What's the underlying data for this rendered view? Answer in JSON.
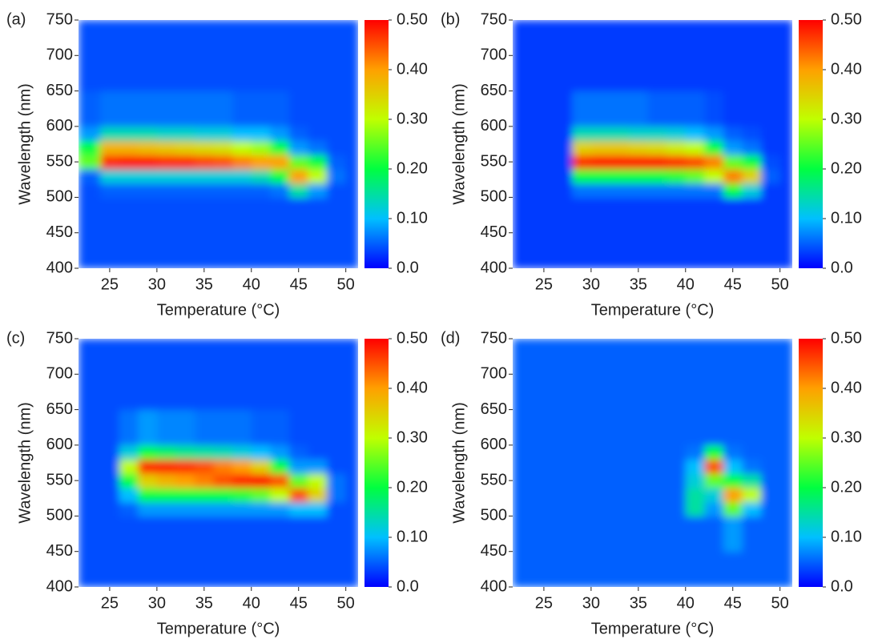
{
  "chart_data": [
    {
      "type": "heatmap",
      "panel_label": "(a)",
      "xlabel": "Temperature (°C)",
      "ylabel": "Wavelength (nm)",
      "xlim": [
        21.7,
        51.3
      ],
      "xticks": [
        25,
        30,
        35,
        40,
        45,
        50
      ],
      "ylim": [
        400,
        750
      ],
      "yticks": [
        400,
        450,
        500,
        550,
        600,
        650,
        700,
        750
      ],
      "xbins": [
        21.7,
        24,
        26,
        28,
        30,
        32,
        34,
        36,
        38,
        40,
        42,
        44,
        46,
        48,
        50,
        51.3
      ],
      "ybins": [
        400,
        450,
        500,
        520,
        540,
        560,
        580,
        600,
        650,
        700,
        750
      ],
      "z": [
        [
          0.04,
          0.04,
          0.04,
          0.04,
          0.04,
          0.04,
          0.04,
          0.04,
          0.04,
          0.04,
          0.04,
          0.04,
          0.04,
          0.04,
          0.04
        ],
        [
          0.04,
          0.04,
          0.04,
          0.04,
          0.04,
          0.04,
          0.04,
          0.04,
          0.04,
          0.04,
          0.04,
          0.04,
          0.04,
          0.04,
          0.04
        ],
        [
          0.04,
          0.05,
          0.05,
          0.05,
          0.05,
          0.05,
          0.05,
          0.05,
          0.05,
          0.05,
          0.06,
          0.15,
          0.08,
          0.04,
          0.04
        ],
        [
          0.05,
          0.12,
          0.12,
          0.12,
          0.12,
          0.12,
          0.12,
          0.12,
          0.12,
          0.14,
          0.2,
          0.4,
          0.3,
          0.06,
          0.04
        ],
        [
          0.25,
          0.48,
          0.5,
          0.5,
          0.48,
          0.48,
          0.46,
          0.45,
          0.42,
          0.4,
          0.4,
          0.25,
          0.2,
          0.05,
          0.04
        ],
        [
          0.2,
          0.38,
          0.38,
          0.37,
          0.36,
          0.35,
          0.34,
          0.33,
          0.3,
          0.28,
          0.2,
          0.08,
          0.06,
          0.04,
          0.04
        ],
        [
          0.08,
          0.14,
          0.14,
          0.14,
          0.13,
          0.13,
          0.12,
          0.12,
          0.1,
          0.1,
          0.08,
          0.05,
          0.04,
          0.04,
          0.04
        ],
        [
          0.05,
          0.06,
          0.06,
          0.06,
          0.06,
          0.06,
          0.06,
          0.06,
          0.05,
          0.05,
          0.05,
          0.04,
          0.04,
          0.04,
          0.04
        ],
        [
          0.04,
          0.04,
          0.04,
          0.04,
          0.04,
          0.04,
          0.04,
          0.04,
          0.04,
          0.04,
          0.04,
          0.04,
          0.04,
          0.04,
          0.04
        ],
        [
          0.04,
          0.04,
          0.04,
          0.04,
          0.04,
          0.04,
          0.04,
          0.04,
          0.04,
          0.04,
          0.04,
          0.04,
          0.04,
          0.04,
          0.04
        ]
      ],
      "zlim": [
        0,
        0.5
      ],
      "zticks": [
        {
          "value": 0,
          "label": "0.0"
        },
        {
          "value": 0.1,
          "label": "0.10"
        },
        {
          "value": 0.2,
          "label": "0.20"
        },
        {
          "value": 0.3,
          "label": "0.30"
        },
        {
          "value": 0.4,
          "label": "0.40"
        },
        {
          "value": 0.5,
          "label": "0.50"
        }
      ],
      "colorscale": [
        "#0000ff",
        "#00c0ff",
        "#00ff40",
        "#c0ff00",
        "#ffa000",
        "#ff0000"
      ]
    },
    {
      "type": "heatmap",
      "panel_label": "(b)",
      "xlabel": "Temperature (°C)",
      "ylabel": "Wavelength (nm)",
      "xlim": [
        21.7,
        51.3
      ],
      "xticks": [
        25,
        30,
        35,
        40,
        45,
        50
      ],
      "ylim": [
        400,
        750
      ],
      "yticks": [
        400,
        450,
        500,
        550,
        600,
        650,
        700,
        750
      ],
      "xbins": [
        21.7,
        24,
        26,
        28,
        30,
        32,
        34,
        36,
        38,
        40,
        42,
        44,
        46,
        48,
        50,
        51.3
      ],
      "ybins": [
        400,
        450,
        500,
        520,
        540,
        560,
        580,
        600,
        650,
        700,
        750
      ],
      "z": [
        [
          0.03,
          0.03,
          0.03,
          0.03,
          0.03,
          0.03,
          0.03,
          0.03,
          0.03,
          0.03,
          0.03,
          0.03,
          0.03,
          0.03,
          0.03
        ],
        [
          0.03,
          0.03,
          0.03,
          0.03,
          0.03,
          0.03,
          0.03,
          0.03,
          0.03,
          0.03,
          0.03,
          0.03,
          0.03,
          0.03,
          0.03
        ],
        [
          0.03,
          0.03,
          0.03,
          0.06,
          0.06,
          0.06,
          0.06,
          0.06,
          0.06,
          0.06,
          0.06,
          0.2,
          0.12,
          0.03,
          0.03
        ],
        [
          0.03,
          0.03,
          0.03,
          0.2,
          0.2,
          0.2,
          0.2,
          0.2,
          0.22,
          0.25,
          0.3,
          0.42,
          0.35,
          0.05,
          0.03
        ],
        [
          0.03,
          0.03,
          0.03,
          0.48,
          0.5,
          0.5,
          0.5,
          0.5,
          0.48,
          0.46,
          0.42,
          0.25,
          0.2,
          0.04,
          0.03
        ],
        [
          0.03,
          0.03,
          0.03,
          0.35,
          0.36,
          0.36,
          0.35,
          0.34,
          0.32,
          0.3,
          0.2,
          0.08,
          0.06,
          0.03,
          0.03
        ],
        [
          0.03,
          0.03,
          0.03,
          0.14,
          0.14,
          0.14,
          0.13,
          0.13,
          0.12,
          0.1,
          0.08,
          0.05,
          0.04,
          0.03,
          0.03
        ],
        [
          0.03,
          0.03,
          0.03,
          0.06,
          0.06,
          0.06,
          0.06,
          0.05,
          0.05,
          0.05,
          0.04,
          0.03,
          0.03,
          0.03,
          0.03
        ],
        [
          0.03,
          0.03,
          0.03,
          0.03,
          0.03,
          0.03,
          0.03,
          0.03,
          0.03,
          0.03,
          0.03,
          0.03,
          0.03,
          0.03,
          0.03
        ],
        [
          0.03,
          0.03,
          0.03,
          0.03,
          0.03,
          0.03,
          0.03,
          0.03,
          0.03,
          0.03,
          0.03,
          0.03,
          0.03,
          0.03,
          0.03
        ]
      ],
      "zlim": [
        0,
        0.5
      ],
      "zticks": [
        {
          "value": 0,
          "label": "0.0"
        },
        {
          "value": 0.1,
          "label": "0.10"
        },
        {
          "value": 0.2,
          "label": "0.20"
        },
        {
          "value": 0.3,
          "label": "0.30"
        },
        {
          "value": 0.4,
          "label": "0.40"
        },
        {
          "value": 0.5,
          "label": "0.50"
        }
      ],
      "colorscale": [
        "#0000ff",
        "#00c0ff",
        "#00ff40",
        "#c0ff00",
        "#ffa000",
        "#ff0000"
      ]
    },
    {
      "type": "heatmap",
      "panel_label": "(c)",
      "xlabel": "Temperature (°C)",
      "ylabel": "Wavelength (nm)",
      "xlim": [
        21.7,
        51.3
      ],
      "xticks": [
        25,
        30,
        35,
        40,
        45,
        50
      ],
      "ylim": [
        400,
        750
      ],
      "yticks": [
        400,
        450,
        500,
        550,
        600,
        650,
        700,
        750
      ],
      "xbins": [
        21.7,
        24,
        26,
        28,
        30,
        32,
        34,
        36,
        38,
        40,
        42,
        44,
        46,
        48,
        50,
        51.3
      ],
      "ybins": [
        400,
        450,
        500,
        520,
        540,
        560,
        580,
        600,
        650,
        700,
        750
      ],
      "z": [
        [
          0.04,
          0.04,
          0.04,
          0.04,
          0.04,
          0.04,
          0.04,
          0.04,
          0.04,
          0.04,
          0.04,
          0.04,
          0.04,
          0.04,
          0.04
        ],
        [
          0.04,
          0.04,
          0.04,
          0.04,
          0.04,
          0.04,
          0.04,
          0.04,
          0.04,
          0.04,
          0.04,
          0.04,
          0.04,
          0.04,
          0.04
        ],
        [
          0.04,
          0.04,
          0.05,
          0.08,
          0.08,
          0.08,
          0.08,
          0.08,
          0.08,
          0.08,
          0.08,
          0.1,
          0.1,
          0.04,
          0.04
        ],
        [
          0.04,
          0.04,
          0.1,
          0.2,
          0.2,
          0.2,
          0.2,
          0.2,
          0.22,
          0.25,
          0.3,
          0.45,
          0.35,
          0.06,
          0.04
        ],
        [
          0.04,
          0.04,
          0.2,
          0.35,
          0.38,
          0.4,
          0.42,
          0.45,
          0.48,
          0.5,
          0.45,
          0.25,
          0.3,
          0.06,
          0.04
        ],
        [
          0.04,
          0.04,
          0.3,
          0.48,
          0.48,
          0.47,
          0.45,
          0.42,
          0.4,
          0.35,
          0.2,
          0.08,
          0.08,
          0.04,
          0.04
        ],
        [
          0.04,
          0.04,
          0.12,
          0.2,
          0.18,
          0.16,
          0.15,
          0.14,
          0.12,
          0.1,
          0.08,
          0.05,
          0.04,
          0.04,
          0.04
        ],
        [
          0.04,
          0.04,
          0.06,
          0.08,
          0.07,
          0.07,
          0.06,
          0.06,
          0.06,
          0.05,
          0.05,
          0.04,
          0.04,
          0.04,
          0.04
        ],
        [
          0.04,
          0.04,
          0.04,
          0.04,
          0.04,
          0.04,
          0.04,
          0.04,
          0.04,
          0.04,
          0.04,
          0.04,
          0.04,
          0.04,
          0.04
        ],
        [
          0.04,
          0.04,
          0.04,
          0.04,
          0.04,
          0.04,
          0.04,
          0.04,
          0.04,
          0.04,
          0.04,
          0.04,
          0.04,
          0.04,
          0.04
        ]
      ],
      "zlim": [
        0,
        0.5
      ],
      "zticks": [
        {
          "value": 0,
          "label": "0.0"
        },
        {
          "value": 0.1,
          "label": "0.10"
        },
        {
          "value": 0.2,
          "label": "0.20"
        },
        {
          "value": 0.3,
          "label": "0.30"
        },
        {
          "value": 0.4,
          "label": "0.40"
        },
        {
          "value": 0.5,
          "label": "0.50"
        }
      ],
      "colorscale": [
        "#0000ff",
        "#00c0ff",
        "#00ff40",
        "#c0ff00",
        "#ffa000",
        "#ff0000"
      ]
    },
    {
      "type": "heatmap",
      "panel_label": "(d)",
      "xlabel": "Temperature (°C)",
      "ylabel": "Wavelength (nm)",
      "xlim": [
        21.7,
        51.3
      ],
      "xticks": [
        25,
        30,
        35,
        40,
        45,
        50
      ],
      "ylim": [
        400,
        750
      ],
      "yticks": [
        400,
        450,
        500,
        550,
        600,
        650,
        700,
        750
      ],
      "xbins": [
        21.7,
        24,
        26,
        28,
        30,
        32,
        34,
        36,
        38,
        40,
        42,
        44,
        46,
        48,
        50,
        51.3
      ],
      "ybins": [
        400,
        450,
        500,
        520,
        540,
        560,
        580,
        600,
        650,
        700,
        750
      ],
      "z": [
        [
          0.05,
          0.05,
          0.05,
          0.05,
          0.05,
          0.05,
          0.05,
          0.05,
          0.05,
          0.05,
          0.05,
          0.05,
          0.05,
          0.05,
          0.05
        ],
        [
          0.05,
          0.05,
          0.05,
          0.05,
          0.05,
          0.05,
          0.05,
          0.05,
          0.05,
          0.05,
          0.05,
          0.08,
          0.05,
          0.05,
          0.05
        ],
        [
          0.05,
          0.05,
          0.05,
          0.05,
          0.05,
          0.05,
          0.05,
          0.05,
          0.05,
          0.15,
          0.08,
          0.25,
          0.1,
          0.05,
          0.05
        ],
        [
          0.05,
          0.05,
          0.05,
          0.05,
          0.05,
          0.05,
          0.05,
          0.05,
          0.05,
          0.15,
          0.12,
          0.4,
          0.3,
          0.05,
          0.05
        ],
        [
          0.05,
          0.05,
          0.05,
          0.05,
          0.05,
          0.05,
          0.05,
          0.05,
          0.05,
          0.12,
          0.25,
          0.2,
          0.15,
          0.05,
          0.05
        ],
        [
          0.05,
          0.05,
          0.05,
          0.05,
          0.05,
          0.05,
          0.05,
          0.05,
          0.05,
          0.1,
          0.45,
          0.1,
          0.06,
          0.05,
          0.05
        ],
        [
          0.05,
          0.05,
          0.05,
          0.05,
          0.05,
          0.05,
          0.05,
          0.05,
          0.05,
          0.06,
          0.2,
          0.06,
          0.05,
          0.05,
          0.05
        ],
        [
          0.05,
          0.05,
          0.05,
          0.05,
          0.05,
          0.05,
          0.05,
          0.05,
          0.05,
          0.05,
          0.05,
          0.05,
          0.05,
          0.05,
          0.05
        ],
        [
          0.05,
          0.05,
          0.05,
          0.05,
          0.05,
          0.05,
          0.05,
          0.05,
          0.05,
          0.05,
          0.05,
          0.05,
          0.05,
          0.05,
          0.05
        ],
        [
          0.05,
          0.05,
          0.05,
          0.05,
          0.05,
          0.05,
          0.05,
          0.05,
          0.05,
          0.05,
          0.05,
          0.05,
          0.05,
          0.05,
          0.05
        ]
      ],
      "zlim": [
        0,
        0.5
      ],
      "zticks": [
        {
          "value": 0,
          "label": "0.0"
        },
        {
          "value": 0.1,
          "label": "0.10"
        },
        {
          "value": 0.2,
          "label": "0.20"
        },
        {
          "value": 0.3,
          "label": "0.30"
        },
        {
          "value": 0.4,
          "label": "0.40"
        },
        {
          "value": 0.5,
          "label": "0.50"
        }
      ],
      "colorscale": [
        "#0000ff",
        "#00c0ff",
        "#00ff40",
        "#c0ff00",
        "#ffa000",
        "#ff0000"
      ]
    }
  ]
}
